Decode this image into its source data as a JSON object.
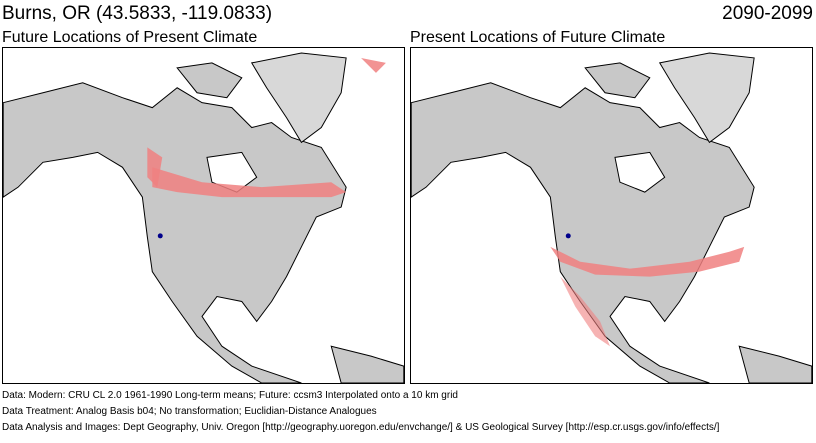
{
  "header": {
    "location": "Burns, OR  (43.5833, -119.0833)",
    "period": "2090-2099"
  },
  "panels": [
    {
      "title": "Future Locations of Present Climate"
    },
    {
      "title": "Present Locations of Future Climate"
    }
  ],
  "colors": {
    "land": "#c8c8c8",
    "analog": "#f08080",
    "site": "#00008b",
    "ocean": "#ffffff"
  },
  "footer": [
    "Data:  Modern: CRU CL 2.0 1961-1990 Long-term means; Future: ccsm3 Interpolated onto a 10 km grid",
    "Data Treatment:  Analog Basis b04; No transformation; Euclidian-Distance Analogues",
    "Data Analysis and Images:  Dept Geography, Univ. Oregon [http://geography.uoregon.edu/envchange/] & US Geological Survey [http://esp.cr.usgs.gov/info/effects/]"
  ]
}
